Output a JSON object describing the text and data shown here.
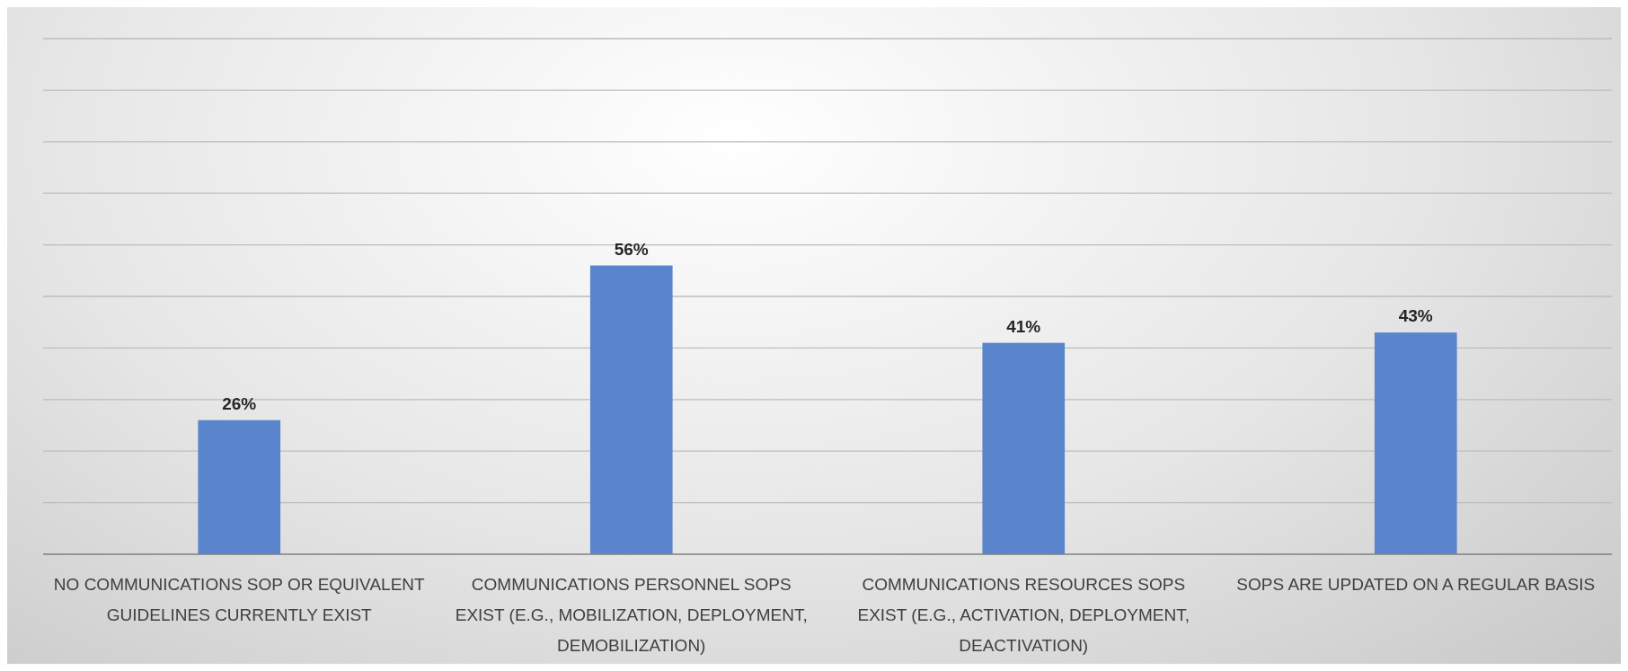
{
  "chart_data": {
    "type": "bar",
    "categories": [
      "NO COMMUNICATIONS SOP OR EQUIVALENT GUIDELINES CURRENTLY EXIST",
      "COMMUNICATIONS PERSONNEL SOPS EXIST (E.G., MOBILIZATION, DEPLOYMENT, DEMOBILIZATION)",
      "COMMUNICATIONS RESOURCES SOPS EXIST (E.G., ACTIVATION, DEPLOYMENT, DEACTIVATION)",
      "SOPS ARE UPDATED ON A REGULAR BASIS"
    ],
    "values": [
      26,
      56,
      41,
      43
    ],
    "value_labels": [
      "26%",
      "56%",
      "41%",
      "43%"
    ],
    "color": "#5a85cc",
    "ylim": [
      0,
      100
    ],
    "yticks": [
      {
        "value": 0,
        "label": null
      },
      {
        "value": 10,
        "label": null
      },
      {
        "value": 20,
        "label": null
      },
      {
        "value": 30,
        "label": null
      },
      {
        "value": 40,
        "label": null
      },
      {
        "value": 50,
        "label": null
      },
      {
        "value": 60,
        "label": null
      },
      {
        "value": 70,
        "label": null
      },
      {
        "value": 80,
        "label": null
      },
      {
        "value": 90,
        "label": null
      },
      {
        "value": 100,
        "label": null
      }
    ],
    "grid": "y",
    "tick_labels": "x"
  }
}
